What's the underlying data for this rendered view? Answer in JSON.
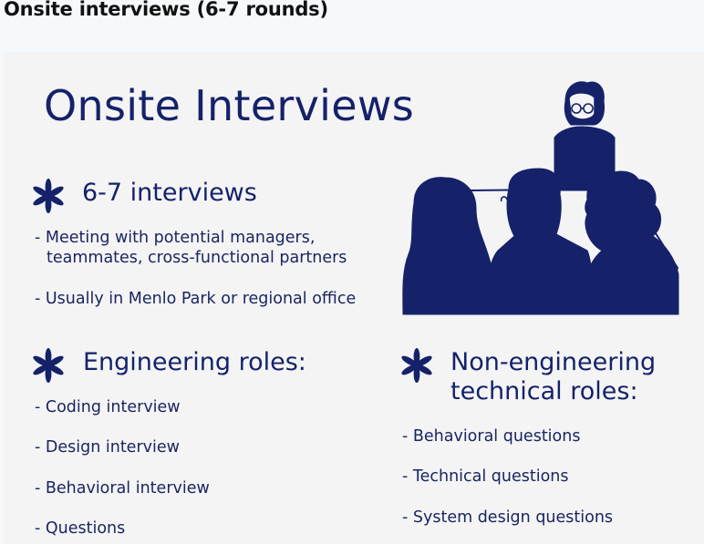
{
  "page": {
    "header_title": "Onsite interviews (6-7 rounds)"
  },
  "slide": {
    "title": "Onsite Interviews",
    "accent_color": "#15226a",
    "background": "#f4f4f5",
    "sections": {
      "interviews": {
        "icon": "asterisk-icon",
        "heading": "6-7 interviews",
        "bullets": [
          "- Meeting with potential managers,",
          "teammates, cross-functional partners",
          "- Usually in Menlo Park or regional office"
        ]
      },
      "engineering": {
        "icon": "asterisk-icon",
        "heading": "Engineering roles:",
        "bullets": [
          "- Coding interview",
          "- Design interview",
          "- Behavioral interview",
          "- Questions"
        ]
      },
      "non_engineering": {
        "icon": "asterisk-icon",
        "heading_line1": "Non-engineering",
        "heading_line2": "technical roles:",
        "bullets": [
          "- Behavioral questions",
          "- Technical questions",
          "- System design questions"
        ]
      }
    },
    "illustration": "interview-panel-illustration"
  }
}
